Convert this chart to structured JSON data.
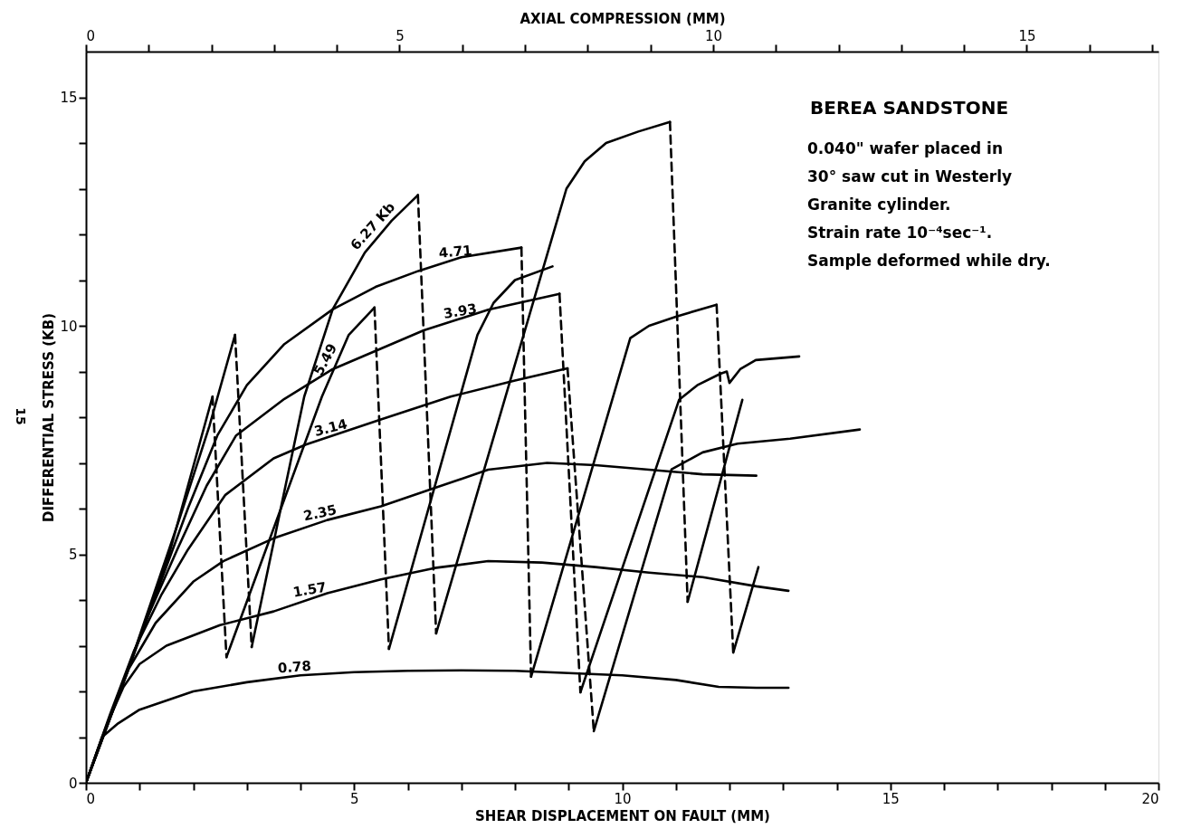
{
  "chart_data": {
    "type": "line",
    "title": "BEREA SANDSTONE",
    "xlabel": "SHEAR DISPLACEMENT ON FAULT (MM)",
    "ylabel": "DIFFERENTIAL STRESS (KB)",
    "x2label": "AXIAL COMPRESSION (MM)",
    "annotations": [
      "0.040\" wafer placed in",
      "30° saw cut in Westerly",
      "Granite cylinder.",
      "Strain rate 10⁻⁴sec⁻¹.",
      "Sample deformed while dry.",
      "15"
    ],
    "xlim": [
      0,
      20
    ],
    "ylim": [
      0,
      16
    ],
    "x2lim": [
      0,
      17.1
    ],
    "xticks": [
      0,
      {
        "value": 1,
        "label": null
      },
      {
        "value": 2,
        "label": null
      },
      {
        "value": 3,
        "label": null
      },
      {
        "value": 4,
        "label": null
      },
      5,
      {
        "value": 6,
        "label": null
      },
      {
        "value": 7,
        "label": null
      },
      {
        "value": 8,
        "label": null
      },
      {
        "value": 9,
        "label": null
      },
      10,
      {
        "value": 11,
        "label": null
      },
      {
        "value": 12,
        "label": null
      },
      {
        "value": 13,
        "label": null
      },
      {
        "value": 14,
        "label": null
      },
      15,
      {
        "value": 16,
        "label": null
      },
      {
        "value": 17,
        "label": null
      },
      {
        "value": 18,
        "label": null
      },
      {
        "value": 19,
        "label": null
      },
      20
    ],
    "yticks": [
      0,
      {
        "value": 1,
        "label": null
      },
      {
        "value": 2,
        "label": null
      },
      {
        "value": 3,
        "label": null
      },
      {
        "value": 4,
        "label": null
      },
      5,
      {
        "value": 6,
        "label": null
      },
      {
        "value": 7,
        "label": null
      },
      {
        "value": 8,
        "label": null
      },
      {
        "value": 9,
        "label": null
      },
      10,
      {
        "value": 11,
        "label": null
      },
      {
        "value": 12,
        "label": null
      },
      {
        "value": 13,
        "label": null
      },
      {
        "value": 14,
        "label": null
      },
      15
    ],
    "x2ticks": [
      0,
      {
        "value": 1,
        "label": null
      },
      {
        "value": 2,
        "label": null
      },
      {
        "value": 3,
        "label": null
      },
      {
        "value": 4,
        "label": null
      },
      5,
      {
        "value": 6,
        "label": null
      },
      {
        "value": 7,
        "label": null
      },
      {
        "value": 8,
        "label": null
      },
      {
        "value": 9,
        "label": null
      },
      10,
      {
        "value": 11,
        "label": null
      },
      {
        "value": 12,
        "label": null
      },
      {
        "value": 13,
        "label": null
      },
      {
        "value": 14,
        "label": null
      },
      15,
      {
        "value": 16,
        "label": null
      },
      {
        "value": 17,
        "label": null
      }
    ],
    "grid": false,
    "marker": "none",
    "series": [
      {
        "name": "0.78",
        "color": "#000000",
        "line_style": "solid",
        "x": [
          0,
          0.3,
          0.6,
          1,
          2,
          3,
          4,
          5,
          6,
          7,
          8,
          9,
          10,
          11,
          11.8,
          12.5,
          13.1
        ],
        "values": [
          0,
          1.0,
          1.3,
          1.6,
          2.0,
          2.2,
          2.35,
          2.42,
          2.45,
          2.46,
          2.45,
          2.4,
          2.35,
          2.25,
          2.1,
          2.08,
          2.08
        ]
      },
      {
        "name": "1.57",
        "color": "#000000",
        "line_style": "solid",
        "x": [
          0,
          0.4,
          0.7,
          1,
          1.5,
          2.5,
          3.5,
          4.5,
          5.5,
          6.5,
          7.5,
          8.5,
          9.5,
          10.5,
          11.5,
          12.5,
          13.1
        ],
        "values": [
          0,
          1.3,
          2.1,
          2.6,
          3.0,
          3.45,
          3.75,
          4.15,
          4.45,
          4.7,
          4.85,
          4.82,
          4.72,
          4.6,
          4.5,
          4.3,
          4.2
        ]
      },
      {
        "name": "2.35",
        "color": "#000000",
        "line_style": "solid",
        "x": [
          0,
          0.35,
          0.8,
          1.3,
          2,
          2.56,
          3.5,
          4.5,
          5.5,
          6.5,
          7.5,
          8.6,
          9.5,
          10.5,
          11.5,
          12.5
        ],
        "values": [
          0,
          1.15,
          2.5,
          3.5,
          4.4,
          4.85,
          5.35,
          5.75,
          6.05,
          6.45,
          6.85,
          7.0,
          6.95,
          6.85,
          6.75,
          6.72
        ]
      },
      {
        "name": "3.14",
        "color": "#000000",
        "line_style": "solid",
        "x": [
          0,
          0.45,
          0.9,
          1.4,
          1.9,
          2.6,
          3.5,
          4.1,
          5.5,
          6.8,
          8,
          8.98
        ],
        "values": [
          0,
          1.5,
          2.9,
          4.1,
          5.1,
          6.3,
          7.1,
          7.4,
          7.95,
          8.45,
          8.8,
          9.07
        ]
      },
      {
        "color": "#000000",
        "line_style": "dashed",
        "x": [
          8.98,
          9.47
        ],
        "values": [
          9.07,
          1.13
        ]
      },
      {
        "color": "#000000",
        "line_style": "solid",
        "x": [
          9.47,
          10.92,
          11.5,
          12.15,
          13.13,
          14.43
        ],
        "values": [
          1.13,
          6.86,
          7.23,
          7.42,
          7.53,
          7.73
        ]
      },
      {
        "name": "3.93",
        "color": "#000000",
        "line_style": "solid",
        "x": [
          0,
          0.55,
          1.1,
          1.7,
          2.25,
          2.8,
          3.7,
          4.6,
          5.5,
          6.3,
          7.5,
          8.83
        ],
        "values": [
          0,
          1.75,
          3.5,
          5.1,
          6.5,
          7.6,
          8.4,
          9.05,
          9.5,
          9.9,
          10.35,
          10.7
        ]
      },
      {
        "color": "#000000",
        "line_style": "dashed",
        "x": [
          8.83,
          9.22
        ],
        "values": [
          10.7,
          1.98
        ]
      },
      {
        "color": "#000000",
        "line_style": "solid",
        "x": [
          9.22,
          11.06,
          11.4,
          11.83,
          11.95,
          12.0,
          12.2,
          12.49,
          13.3
        ],
        "values": [
          1.98,
          8.38,
          8.7,
          8.95,
          9.0,
          8.75,
          9.05,
          9.25,
          9.33
        ]
      },
      {
        "name": "4.71",
        "color": "#000000",
        "line_style": "solid",
        "x": [
          0,
          0.65,
          1.3,
          1.9,
          2.45,
          3,
          3.7,
          4.6,
          5.4,
          6.2,
          7,
          8.12
        ],
        "values": [
          0,
          2.05,
          4.1,
          6.0,
          7.6,
          8.7,
          9.6,
          10.36,
          10.85,
          11.2,
          11.5,
          11.71
        ]
      },
      {
        "color": "#000000",
        "line_style": "dashed",
        "x": [
          8.12,
          8.3
        ],
        "values": [
          11.71,
          2.32
        ]
      },
      {
        "color": "#000000",
        "line_style": "solid",
        "x": [
          8.3,
          10.15,
          10.5,
          11,
          11.76
        ],
        "values": [
          2.32,
          9.73,
          10.0,
          10.2,
          10.46
        ]
      },
      {
        "color": "#000000",
        "line_style": "dashed",
        "x": [
          11.76,
          12.07
        ],
        "values": [
          10.46,
          2.85
        ]
      },
      {
        "color": "#000000",
        "line_style": "solid",
        "x": [
          12.07,
          12.54
        ],
        "values": [
          2.85,
          4.72
        ]
      },
      {
        "color": "#000000",
        "line_style": "solid",
        "x": [
          0,
          0.75,
          1.55,
          2.36
        ],
        "values": [
          0,
          2.35,
          5.0,
          8.45
        ]
      },
      {
        "color": "#000000",
        "line_style": "dashed",
        "x": [
          2.36,
          2.62
        ],
        "values": [
          8.45,
          2.75
        ]
      },
      {
        "name": "5.49",
        "color": "#000000",
        "line_style": "solid",
        "x": [
          2.62,
          4.4,
          4.9,
          5.38
        ],
        "values": [
          2.75,
          8.45,
          9.8,
          10.4
        ]
      },
      {
        "color": "#000000",
        "line_style": "dashed",
        "x": [
          5.38,
          5.65
        ],
        "values": [
          10.4,
          2.93
        ]
      },
      {
        "color": "#000000",
        "line_style": "solid",
        "x": [
          5.65,
          7.3,
          7.6,
          8.0,
          8.7
        ],
        "values": [
          2.93,
          9.8,
          10.5,
          11.0,
          11.3
        ]
      },
      {
        "color": "#000000",
        "line_style": "solid",
        "x": [
          0,
          0.85,
          1.75,
          2.3,
          2.78
        ],
        "values": [
          0,
          2.7,
          5.8,
          7.8,
          9.8
        ]
      },
      {
        "color": "#000000",
        "line_style": "dashed",
        "x": [
          2.78,
          3.09
        ],
        "values": [
          9.8,
          2.97
        ]
      },
      {
        "name": "6.27 Kb",
        "color": "#000000",
        "line_style": "solid",
        "x": [
          3.09,
          4.07,
          4.6,
          5.2,
          5.7,
          6.19
        ],
        "values": [
          2.97,
          8.45,
          10.36,
          11.6,
          12.3,
          12.86
        ]
      },
      {
        "color": "#000000",
        "line_style": "dashed",
        "x": [
          6.19,
          6.53
        ],
        "values": [
          12.86,
          3.27
        ]
      },
      {
        "color": "#000000",
        "line_style": "solid",
        "x": [
          6.53,
          8.96,
          9.3,
          9.7,
          10.3,
          10.89
        ],
        "values": [
          3.27,
          13.0,
          13.6,
          14.0,
          14.25,
          14.46
        ]
      },
      {
        "color": "#000000",
        "line_style": "dashed",
        "x": [
          10.89,
          11.22
        ],
        "values": [
          14.46,
          3.96
        ]
      },
      {
        "color": "#000000",
        "line_style": "solid",
        "x": [
          11.22,
          12.24
        ],
        "values": [
          3.96,
          8.38
        ]
      }
    ]
  }
}
